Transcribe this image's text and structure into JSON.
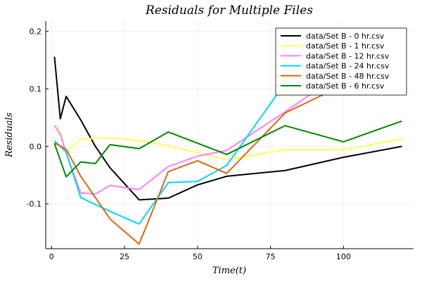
{
  "chart_data": {
    "type": "line",
    "title": "Residuals for Multiple Files",
    "xlabel": "Time(t)",
    "ylabel": "Residuals",
    "xlim": [
      -2,
      124
    ],
    "ylim": [
      -0.178,
      0.218
    ],
    "xticks": [
      0,
      25,
      50,
      75,
      100
    ],
    "xtick_labels": [
      "0",
      "25",
      "50",
      "75",
      "100"
    ],
    "yticks": [
      -0.1,
      0.0,
      0.1,
      0.2
    ],
    "ytick_labels": [
      "-0.1",
      "0.0",
      "0.1",
      "0.2"
    ],
    "grid": true,
    "legend_position": "top-right",
    "series": [
      {
        "name": "data/Set B - 0 hr.csv",
        "color": "#000000",
        "points": [
          [
            1,
            0.156
          ],
          [
            3,
            0.048
          ],
          [
            5,
            0.087
          ],
          [
            10,
            0.046
          ],
          [
            15,
            0.0
          ],
          [
            20,
            -0.037
          ],
          [
            30,
            -0.093
          ],
          [
            40,
            -0.09
          ],
          [
            50,
            -0.067
          ],
          [
            60,
            -0.052
          ],
          [
            80,
            -0.042
          ],
          [
            100,
            -0.019
          ],
          [
            120,
            0.0
          ]
        ]
      },
      {
        "name": "data/Set B - 1 hr.csv",
        "color": "#ffff55",
        "points": [
          [
            1,
            0.035
          ],
          [
            3,
            0.025
          ],
          [
            5,
            -0.01
          ],
          [
            10,
            0.012
          ],
          [
            15,
            0.014
          ],
          [
            20,
            0.015
          ],
          [
            30,
            0.01
          ],
          [
            40,
            0.001
          ],
          [
            50,
            -0.011
          ],
          [
            60,
            -0.023
          ],
          [
            80,
            -0.006
          ],
          [
            100,
            -0.006
          ],
          [
            120,
            0.013
          ]
        ]
      },
      {
        "name": "data/Set B - 12 hr.csv",
        "color": "#ff80ff",
        "points": [
          [
            1,
            0.037
          ],
          [
            3,
            0.02
          ],
          [
            5,
            -0.012
          ],
          [
            10,
            -0.081
          ],
          [
            15,
            -0.083
          ],
          [
            20,
            -0.068
          ],
          [
            30,
            -0.075
          ],
          [
            40,
            -0.035
          ],
          [
            50,
            -0.017
          ],
          [
            60,
            -0.007
          ],
          [
            80,
            0.06
          ],
          [
            100,
            0.13
          ],
          [
            120,
            0.12
          ]
        ]
      },
      {
        "name": "data/Set B - 24 hr.csv",
        "color": "#00d5f5",
        "points": [
          [
            1,
            0.01
          ],
          [
            5,
            -0.01
          ],
          [
            10,
            -0.089
          ],
          [
            20,
            -0.113
          ],
          [
            30,
            -0.135
          ],
          [
            40,
            -0.063
          ],
          [
            50,
            -0.061
          ],
          [
            60,
            -0.033
          ],
          [
            80,
            0.11
          ],
          [
            100,
            0.128
          ],
          [
            120,
            0.113
          ]
        ]
      },
      {
        "name": "data/Set B - 48 hr.csv",
        "color": "#dd6611",
        "points": [
          [
            1,
            0.006
          ],
          [
            5,
            -0.005
          ],
          [
            10,
            -0.052
          ],
          [
            20,
            -0.126
          ],
          [
            30,
            -0.17
          ],
          [
            40,
            -0.044
          ],
          [
            50,
            -0.025
          ],
          [
            60,
            -0.047
          ],
          [
            80,
            0.058
          ],
          [
            100,
            0.107
          ],
          [
            120,
            0.205
          ]
        ]
      },
      {
        "name": "data/Set B - 6 hr.csv",
        "color": "#008800",
        "points": [
          [
            1,
            0.005
          ],
          [
            5,
            -0.053
          ],
          [
            10,
            -0.027
          ],
          [
            15,
            -0.03
          ],
          [
            20,
            0.003
          ],
          [
            30,
            -0.004
          ],
          [
            40,
            0.025
          ],
          [
            60,
            -0.014
          ],
          [
            80,
            0.036
          ],
          [
            100,
            0.008
          ],
          [
            120,
            0.044
          ]
        ]
      }
    ]
  }
}
